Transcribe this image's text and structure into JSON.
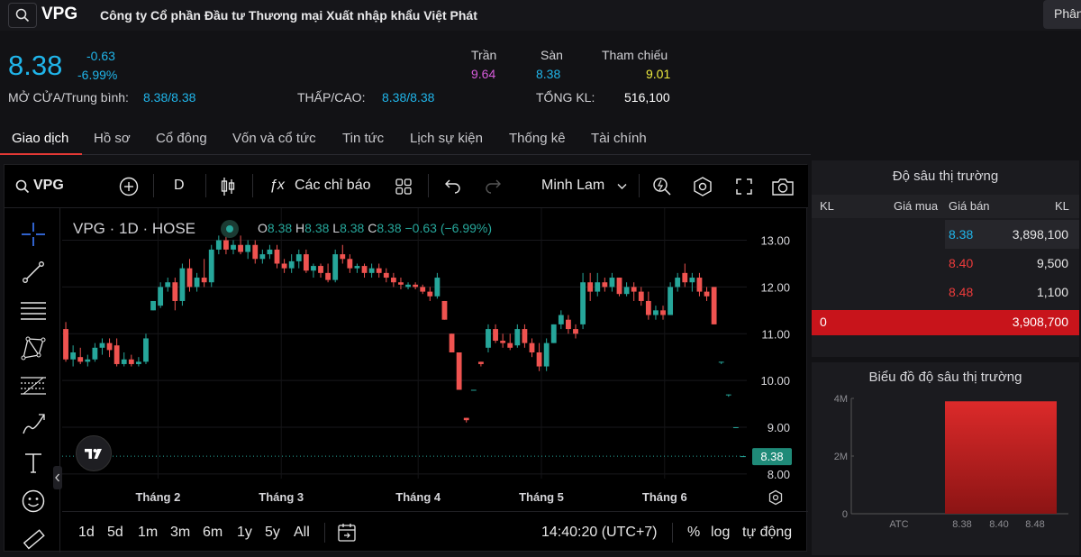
{
  "header": {
    "ticker": "VPG",
    "company": "Công ty Cổ phần Đầu tư Thương mại Xuất nhập khẩu Việt Phát",
    "right_button": "Phân"
  },
  "quote": {
    "price": "8.38",
    "change": "-0.63",
    "change_pct": "-6.99%",
    "ceiling_label": "Trần",
    "ceiling": "9.64",
    "floor_label": "Sàn",
    "floor": "8.38",
    "ref_label": "Tham chiếu",
    "ref": "9.01",
    "open_avg_label": "MỞ CỬA/Trung bình:",
    "open_avg": "8.38/8.38",
    "low_high_label": "THẤP/CAO:",
    "low_high": "8.38/8.38",
    "volume_label": "TỔNG KL:",
    "volume": "516,100"
  },
  "tabs": [
    "Giao dịch",
    "Hồ sơ",
    "Cổ đông",
    "Vốn và cổ tức",
    "Tin tức",
    "Lịch sự kiện",
    "Thống kê",
    "Tài chính"
  ],
  "toolbar": {
    "symbol": "VPG",
    "interval": "D",
    "indicators": "Các chỉ báo",
    "theme": "Minh Lam"
  },
  "chart_legend": {
    "title": "VPG · 1D · HOSE",
    "o_label": "O",
    "o": "8.38",
    "h_label": "H",
    "h": "8.38",
    "l_label": "L",
    "l": "8.38",
    "c_label": "C",
    "c": "8.38",
    "change": "−0.63 (−6.99%)"
  },
  "chart_data": {
    "type": "candlestick",
    "x_labels": [
      "Tháng 2",
      "Tháng 3",
      "Tháng 4",
      "Tháng 5",
      "Tháng 6"
    ],
    "y_ticks": [
      "13.00",
      "12.00",
      "11.00",
      "10.00",
      "9.00",
      "8.00"
    ],
    "ylim": [
      7.9,
      13.3
    ],
    "last_price": "8.38",
    "candles": [
      [
        11.1,
        11.25,
        10.4,
        10.45
      ],
      [
        10.45,
        10.75,
        10.3,
        10.6
      ],
      [
        10.5,
        10.7,
        10.35,
        10.4
      ],
      [
        10.4,
        10.55,
        10.3,
        10.45
      ],
      [
        10.45,
        10.8,
        10.4,
        10.7
      ],
      [
        10.7,
        10.9,
        10.55,
        10.8
      ],
      [
        10.8,
        10.9,
        10.5,
        10.65
      ],
      [
        10.75,
        10.9,
        10.3,
        10.35
      ],
      [
        10.35,
        10.6,
        10.3,
        10.45
      ],
      [
        10.45,
        10.55,
        10.3,
        10.35
      ],
      [
        10.35,
        10.5,
        10.3,
        10.4
      ],
      [
        10.4,
        11.0,
        10.35,
        10.9
      ],
      [
        11.5,
        11.7,
        11.5,
        11.7
      ],
      [
        11.6,
        12.1,
        11.55,
        12.0
      ],
      [
        12.0,
        12.2,
        11.9,
        12.1
      ],
      [
        12.1,
        12.2,
        11.5,
        11.7
      ],
      [
        11.7,
        12.5,
        11.6,
        12.4
      ],
      [
        12.4,
        12.6,
        11.9,
        12.0
      ],
      [
        12.0,
        12.3,
        11.9,
        12.2
      ],
      [
        12.2,
        12.6,
        12.0,
        12.1
      ],
      [
        12.1,
        12.9,
        12.0,
        12.8
      ],
      [
        12.8,
        13.1,
        12.7,
        13.0
      ],
      [
        13.0,
        13.2,
        12.7,
        12.8
      ],
      [
        12.8,
        13.0,
        12.7,
        12.9
      ],
      [
        12.9,
        13.1,
        12.7,
        12.75
      ],
      [
        12.75,
        13.0,
        12.6,
        12.9
      ],
      [
        12.9,
        13.0,
        12.5,
        12.6
      ],
      [
        12.6,
        12.8,
        12.5,
        12.7
      ],
      [
        12.7,
        12.9,
        12.6,
        12.8
      ],
      [
        12.8,
        12.9,
        12.4,
        12.5
      ],
      [
        12.5,
        12.6,
        12.3,
        12.4
      ],
      [
        12.4,
        12.7,
        12.3,
        12.55
      ],
      [
        12.55,
        12.8,
        12.4,
        12.7
      ],
      [
        12.7,
        12.8,
        12.3,
        12.35
      ],
      [
        12.35,
        12.5,
        12.2,
        12.45
      ],
      [
        12.45,
        12.5,
        12.2,
        12.3
      ],
      [
        12.3,
        12.5,
        12.1,
        12.15
      ],
      [
        12.15,
        12.8,
        12.1,
        12.7
      ],
      [
        12.7,
        12.9,
        12.5,
        12.6
      ],
      [
        12.6,
        12.7,
        12.3,
        12.4
      ],
      [
        12.4,
        12.5,
        12.3,
        12.45
      ],
      [
        12.45,
        12.5,
        12.2,
        12.3
      ],
      [
        12.3,
        12.5,
        12.2,
        12.4
      ],
      [
        12.4,
        12.5,
        12.2,
        12.3
      ],
      [
        12.3,
        12.4,
        12.1,
        12.2
      ],
      [
        12.2,
        12.3,
        12.0,
        12.1
      ],
      [
        12.1,
        12.2,
        11.95,
        12.05
      ],
      [
        12.0,
        12.1,
        11.95,
        12.05
      ],
      [
        12.05,
        12.1,
        11.95,
        12.0
      ],
      [
        12.0,
        12.05,
        11.85,
        11.9
      ],
      [
        11.9,
        12.0,
        11.7,
        11.8
      ],
      [
        11.8,
        12.3,
        11.75,
        12.2
      ],
      [
        11.7,
        11.7,
        11.3,
        11.3
      ],
      [
        11.0,
        11.0,
        10.6,
        10.6
      ],
      [
        10.6,
        10.6,
        9.8,
        9.8
      ],
      [
        9.2,
        9.2,
        9.1,
        9.15
      ],
      [
        9.8,
        9.8,
        9.8,
        9.8
      ],
      [
        10.4,
        10.4,
        10.3,
        10.35
      ],
      [
        10.7,
        11.2,
        10.6,
        11.1
      ],
      [
        11.1,
        11.2,
        10.8,
        10.85
      ],
      [
        10.85,
        11.0,
        10.7,
        10.8
      ],
      [
        10.8,
        11.0,
        10.65,
        10.7
      ],
      [
        10.75,
        11.2,
        10.7,
        11.1
      ],
      [
        11.1,
        11.2,
        10.7,
        10.8
      ],
      [
        10.8,
        10.9,
        10.5,
        10.6
      ],
      [
        10.6,
        10.8,
        10.2,
        10.3
      ],
      [
        10.3,
        10.9,
        10.2,
        10.8
      ],
      [
        10.8,
        11.2,
        10.8,
        11.2
      ],
      [
        11.2,
        11.5,
        11.1,
        11.4
      ],
      [
        11.3,
        11.4,
        11.0,
        11.1
      ],
      [
        11.1,
        11.2,
        10.9,
        11.0
      ],
      [
        11.2,
        12.3,
        11.1,
        12.1
      ],
      [
        12.1,
        12.3,
        11.7,
        11.9
      ],
      [
        11.9,
        12.3,
        11.8,
        12.1
      ],
      [
        12.1,
        12.2,
        11.9,
        12.0
      ],
      [
        12.0,
        12.3,
        11.9,
        12.2
      ],
      [
        12.2,
        12.2,
        11.8,
        11.85
      ],
      [
        11.85,
        12.1,
        11.8,
        12.0
      ],
      [
        12.0,
        12.1,
        11.7,
        11.9
      ],
      [
        11.9,
        12.0,
        11.6,
        11.7
      ],
      [
        11.7,
        11.9,
        11.3,
        11.4
      ],
      [
        11.4,
        11.6,
        11.3,
        11.5
      ],
      [
        11.5,
        11.6,
        11.3,
        11.4
      ],
      [
        11.4,
        12.1,
        11.4,
        12.0
      ],
      [
        12.0,
        12.3,
        11.9,
        12.2
      ],
      [
        12.3,
        12.5,
        12.0,
        12.1
      ],
      [
        12.1,
        12.3,
        11.9,
        12.2
      ],
      [
        12.2,
        12.3,
        11.8,
        11.9
      ],
      [
        11.9,
        12.0,
        11.7,
        11.8
      ],
      [
        12.0,
        12.0,
        11.2,
        11.2
      ],
      [
        10.4,
        10.4,
        10.35,
        10.4
      ],
      [
        9.7,
        9.7,
        9.65,
        9.7
      ],
      [
        9.0,
        9.0,
        8.98,
        9.0
      ],
      [
        8.38,
        8.38,
        8.38,
        8.38
      ]
    ]
  },
  "timeframes": [
    "1d",
    "5d",
    "1m",
    "3m",
    "6m",
    "1y",
    "5y",
    "All"
  ],
  "bottom": {
    "time": "14:40:20 (UTC+7)",
    "pct": "%",
    "log": "log",
    "auto": "tự động"
  },
  "depth": {
    "title": "Độ sâu thị trường",
    "headers": [
      "KL",
      "Giá mua",
      "Giá bán",
      "KL"
    ],
    "rows": [
      {
        "ask_price": "8.38",
        "ask_vol": "3,898,100"
      },
      {
        "ask_price": "8.40",
        "ask_vol": "9,500"
      },
      {
        "ask_price": "8.48",
        "ask_vol": "1,100"
      }
    ],
    "total_bid": "0",
    "total_ask": "3,908,700"
  },
  "depth_chart": {
    "title": "Biểu đồ độ sâu thị trường",
    "y_ticks": [
      "4M",
      "2M",
      "0"
    ],
    "x_labels": [
      "ATC",
      "8.38",
      "8.40",
      "8.48"
    ],
    "value": 3898100
  },
  "colors": {
    "up": "#26a69a",
    "down": "#ef5350",
    "accent": "#20b5ea",
    "ceiling": "#d55bd9",
    "reference": "#ece93e"
  }
}
